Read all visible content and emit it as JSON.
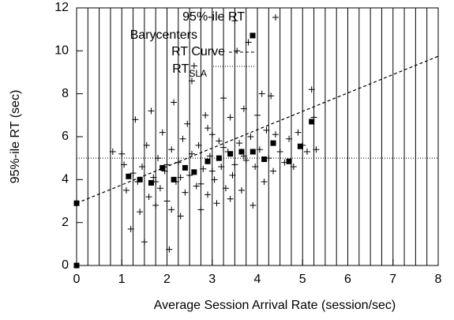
{
  "chart_data": {
    "type": "scatter",
    "xlabel": "Average Session Arrival Rate (session/sec)",
    "ylabel": "95%-ile RT (sec)",
    "xlim": [
      0,
      8
    ],
    "ylim": [
      0,
      12
    ],
    "xticks": [
      0,
      1,
      2,
      3,
      4,
      5,
      6,
      7,
      8
    ],
    "yticks": [
      0,
      2,
      4,
      6,
      8,
      10,
      12
    ],
    "bin_edges": [
      0.25,
      0.5,
      0.75,
      1,
      1.25,
      1.5,
      1.75,
      2,
      2.25,
      2.5,
      2.75,
      3,
      3.25,
      3.5,
      3.75,
      4,
      4.25,
      4.5,
      4.75,
      5,
      5.25,
      5.5,
      5.75,
      6,
      6.25,
      6.5,
      6.75,
      7,
      7.25,
      7.5,
      7.75
    ],
    "series": [
      {
        "name": "95%-ile RT",
        "marker": "plus",
        "color": "#000000",
        "x": [
          0.8,
          1.0,
          1.05,
          1.1,
          1.2,
          1.25,
          1.3,
          1.35,
          1.4,
          1.45,
          1.5,
          1.55,
          1.6,
          1.65,
          1.7,
          1.75,
          1.8,
          1.85,
          1.9,
          1.95,
          2.0,
          2.05,
          2.1,
          2.15,
          2.2,
          2.25,
          2.3,
          2.35,
          2.4,
          2.45,
          2.5,
          2.55,
          2.6,
          2.65,
          2.7,
          2.75,
          2.8,
          2.85,
          2.9,
          2.95,
          3.0,
          3.05,
          3.1,
          3.15,
          3.2,
          3.25,
          3.3,
          3.35,
          3.4,
          3.45,
          3.5,
          3.55,
          3.6,
          3.65,
          3.7,
          3.75,
          3.8,
          3.85,
          3.9,
          3.95,
          4.0,
          4.05,
          4.1,
          4.15,
          4.2,
          4.25,
          4.3,
          4.35,
          4.4,
          4.5,
          4.6,
          4.7,
          4.8,
          4.9,
          5.0,
          5.1,
          5.2,
          5.25,
          5.3,
          1.75,
          2.0,
          2.3,
          2.55,
          2.75,
          3.0,
          3.25,
          3.5,
          3.7,
          2.1,
          2.9,
          3.4
        ],
        "values": [
          5.3,
          5.2,
          4.7,
          3.5,
          1.7,
          4.3,
          6.8,
          3.9,
          2.5,
          4.6,
          1.1,
          5.6,
          3.2,
          7.2,
          4.1,
          2.8,
          5.0,
          3.6,
          6.2,
          4.4,
          3.0,
          0.75,
          5.4,
          7.6,
          3.9,
          4.8,
          2.3,
          5.9,
          3.4,
          6.6,
          4.2,
          8.6,
          9.3,
          3.7,
          5.6,
          2.6,
          4.5,
          7.0,
          3.3,
          5.1,
          6.1,
          4.0,
          2.9,
          5.8,
          4.6,
          7.8,
          3.6,
          5.3,
          6.9,
          4.2,
          11.4,
          10.0,
          5.7,
          3.5,
          7.3,
          4.9,
          10.4,
          6.0,
          2.8,
          4.6,
          7.0,
          5.4,
          8.0,
          3.9,
          6.3,
          5.0,
          7.9,
          4.4,
          6.1,
          5.3,
          4.8,
          5.9,
          4.6,
          6.2,
          5.6,
          5.3,
          8.2,
          6.9,
          5.4,
          3.9,
          4.7,
          4.1,
          5.2,
          3.8,
          4.4,
          5.5,
          4.7,
          5.1,
          2.6,
          6.4,
          3.1
        ]
      },
      {
        "name": "Barycenters",
        "marker": "square",
        "color": "#000000",
        "x": [
          0,
          0,
          1.15,
          1.4,
          1.65,
          1.9,
          2.15,
          2.4,
          2.6,
          2.9,
          3.15,
          3.4,
          3.65,
          3.9,
          4.15,
          4.35,
          4.7,
          4.95,
          5.2
        ],
        "values": [
          0,
          2.9,
          4.15,
          4.0,
          3.85,
          4.55,
          4.0,
          4.55,
          4.35,
          4.85,
          5.0,
          5.2,
          5.3,
          5.3,
          4.95,
          5.7,
          4.85,
          5.55,
          6.7
        ]
      },
      {
        "name": "RT Curve",
        "marker": "dashed",
        "color": "#000000",
        "x": [
          0,
          8
        ],
        "values": [
          2.9,
          9.75
        ]
      },
      {
        "name": "RT",
        "subscript": "SLA",
        "marker": "dotted",
        "color": "#000000",
        "x": [
          0,
          8
        ],
        "values": [
          5.0,
          5.0
        ]
      }
    ]
  }
}
